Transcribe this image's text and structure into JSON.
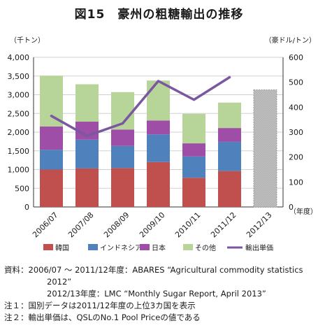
{
  "title": "図15　豪州の粗糖輸出の推移",
  "chart_data": {
    "type": "bar",
    "stacked": true,
    "left_unit": "（千トン）",
    "right_unit": "（豪ドル/トン）",
    "x_unit": "（年度）",
    "categories": [
      "2006/07",
      "2007/08",
      "2008/09",
      "2009/10",
      "2010/11",
      "2011/12",
      "2012/13"
    ],
    "series": [
      {
        "name": "韓国",
        "color": "#c0504d",
        "values": [
          1000,
          1030,
          1040,
          1200,
          780,
          960,
          null
        ]
      },
      {
        "name": "インドネシア",
        "color": "#4f81bd",
        "values": [
          530,
          770,
          590,
          740,
          570,
          780,
          null
        ]
      },
      {
        "name": "日本",
        "color": "#9e4ea6",
        "values": [
          620,
          480,
          440,
          370,
          350,
          370,
          null
        ]
      },
      {
        "name": "その他",
        "color": "#b7d599",
        "values": [
          1360,
          1000,
          1000,
          1070,
          790,
          680,
          null
        ]
      }
    ],
    "total_bar": {
      "category": "2012/13",
      "value": 3130,
      "color": "#bfbfbf",
      "border": "#999999"
    },
    "line": {
      "name": "輸出単価",
      "color": "#7a57a0",
      "values": [
        365,
        285,
        335,
        505,
        430,
        520,
        null
      ]
    },
    "ylim_left": [
      0,
      4000
    ],
    "yticks_left": [
      0,
      500,
      1000,
      1500,
      2000,
      2500,
      3000,
      3500,
      4000
    ],
    "ytick_labels_left": [
      "0",
      "500",
      "1,000",
      "1,500",
      "2,000",
      "2,500",
      "3,000",
      "3,500",
      "4,000"
    ],
    "ylim_right": [
      0,
      600
    ],
    "yticks_right": [
      0,
      100,
      200,
      300,
      400,
      500,
      600
    ],
    "legend": [
      "韓国",
      "インドネシア",
      "日本",
      "その他",
      "輸出単価"
    ],
    "grid": true
  },
  "notes": [
    {
      "key": "資料：",
      "text": "2006/07 ～ 2011/12年度：ABARES “Agricultural commodity statistics"
    },
    {
      "key": "",
      "text": "2012”"
    },
    {
      "key": "",
      "text": "2012/13年度：LMC “Monthly Sugar Report, April 2013”"
    },
    {
      "key": "注１：",
      "text": "国別データは2011/12年度の上位3カ国を表示"
    },
    {
      "key": "注２：",
      "text": "輸出単価は、QSLのNo.1 Pool Priceの値である"
    }
  ]
}
